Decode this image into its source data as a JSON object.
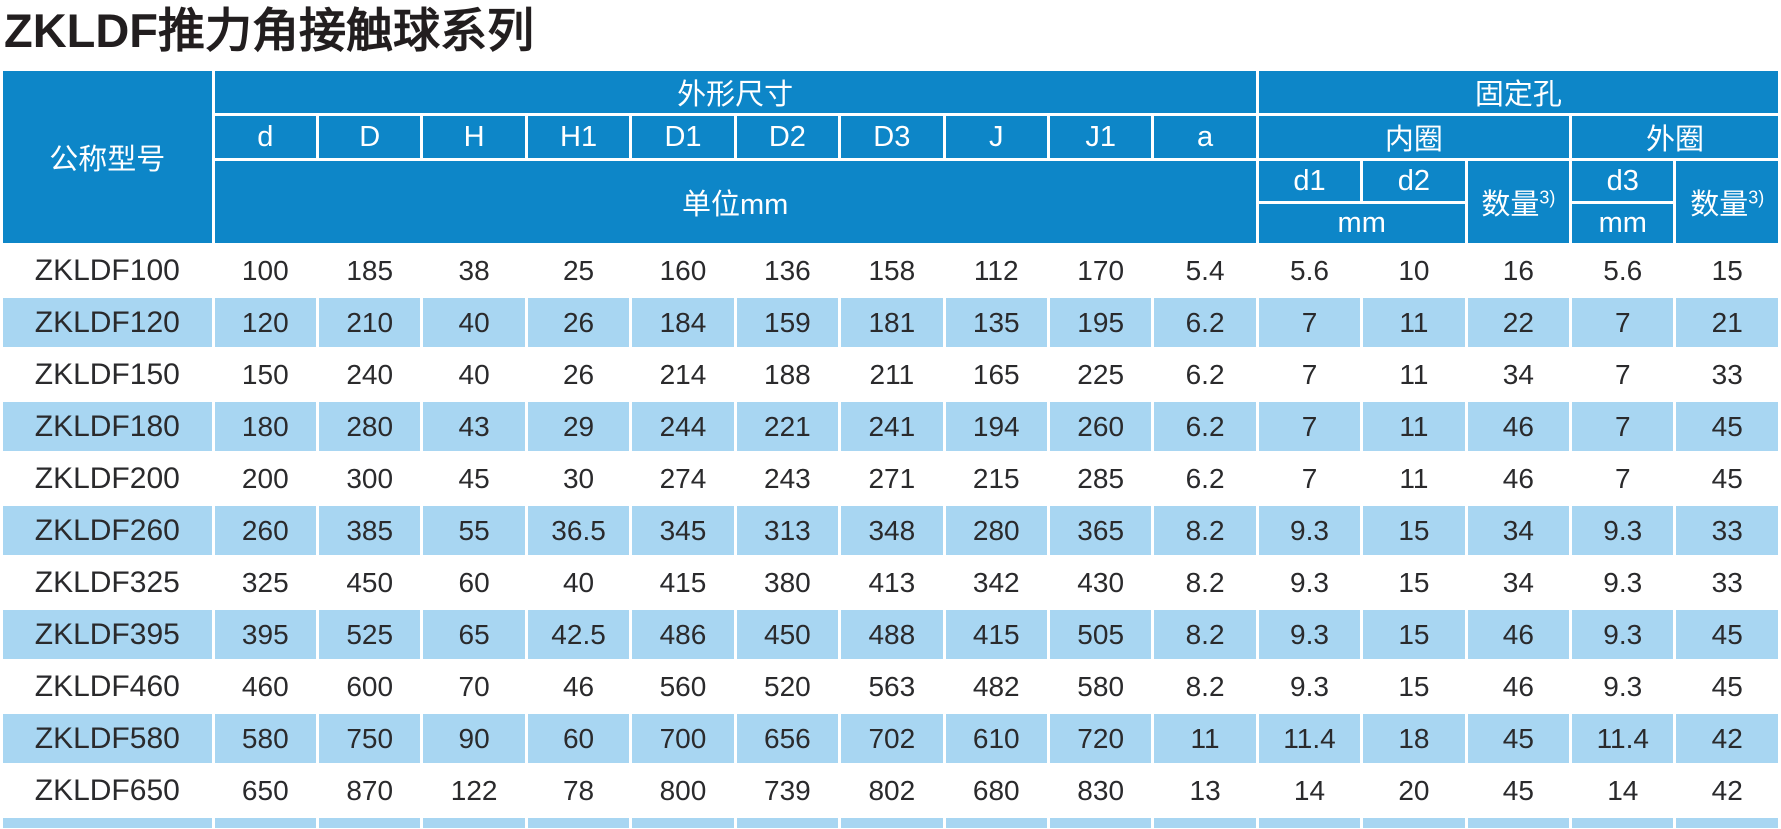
{
  "title": "ZKLDF推力角接触球系列",
  "colors": {
    "header_bg": "#0d86c8",
    "row_alt_bg": "#a8d6f2",
    "row_bg": "#ffffff",
    "grid_line": "#ffffff",
    "title_text": "#221e1f",
    "cell_text": "#2a2a2c",
    "header_text": "#ffffff"
  },
  "table": {
    "header": {
      "model_col": "公称型号",
      "dims_group": "外形尺寸",
      "fixing_group": "固定孔",
      "dim_cols": [
        "d",
        "D",
        "H",
        "H1",
        "D1",
        "D2",
        "D3",
        "J",
        "J1",
        "a"
      ],
      "unit_label": "单位mm",
      "inner_ring": "内圈",
      "outer_ring": "外圈",
      "inner_cols": [
        "d1",
        "d2"
      ],
      "outer_col": "d3",
      "qty_label": "数量",
      "qty_sup": "3)",
      "mm_label": "mm"
    },
    "rows": [
      [
        "ZKLDF100",
        "100",
        "185",
        "38",
        "25",
        "160",
        "136",
        "158",
        "112",
        "170",
        "5.4",
        "5.6",
        "10",
        "16",
        "5.6",
        "15"
      ],
      [
        "ZKLDF120",
        "120",
        "210",
        "40",
        "26",
        "184",
        "159",
        "181",
        "135",
        "195",
        "6.2",
        "7",
        "11",
        "22",
        "7",
        "21"
      ],
      [
        "ZKLDF150",
        "150",
        "240",
        "40",
        "26",
        "214",
        "188",
        "211",
        "165",
        "225",
        "6.2",
        "7",
        "11",
        "34",
        "7",
        "33"
      ],
      [
        "ZKLDF180",
        "180",
        "280",
        "43",
        "29",
        "244",
        "221",
        "241",
        "194",
        "260",
        "6.2",
        "7",
        "11",
        "46",
        "7",
        "45"
      ],
      [
        "ZKLDF200",
        "200",
        "300",
        "45",
        "30",
        "274",
        "243",
        "271",
        "215",
        "285",
        "6.2",
        "7",
        "11",
        "46",
        "7",
        "45"
      ],
      [
        "ZKLDF260",
        "260",
        "385",
        "55",
        "36.5",
        "345",
        "313",
        "348",
        "280",
        "365",
        "8.2",
        "9.3",
        "15",
        "34",
        "9.3",
        "33"
      ],
      [
        "ZKLDF325",
        "325",
        "450",
        "60",
        "40",
        "415",
        "380",
        "413",
        "342",
        "430",
        "8.2",
        "9.3",
        "15",
        "34",
        "9.3",
        "33"
      ],
      [
        "ZKLDF395",
        "395",
        "525",
        "65",
        "42.5",
        "486",
        "450",
        "488",
        "415",
        "505",
        "8.2",
        "9.3",
        "15",
        "46",
        "9.3",
        "45"
      ],
      [
        "ZKLDF460",
        "460",
        "600",
        "70",
        "46",
        "560",
        "520",
        "563",
        "482",
        "580",
        "8.2",
        "9.3",
        "15",
        "46",
        "9.3",
        "45"
      ],
      [
        "ZKLDF580",
        "580",
        "750",
        "90",
        "60",
        "700",
        "656",
        "702",
        "610",
        "720",
        "11",
        "11.4",
        "18",
        "45",
        "11.4",
        "42"
      ],
      [
        "ZKLDF650",
        "650",
        "870",
        "122",
        "78",
        "800",
        "739",
        "802",
        "680",
        "830",
        "13",
        "14",
        "20",
        "45",
        "14",
        "42"
      ]
    ]
  }
}
